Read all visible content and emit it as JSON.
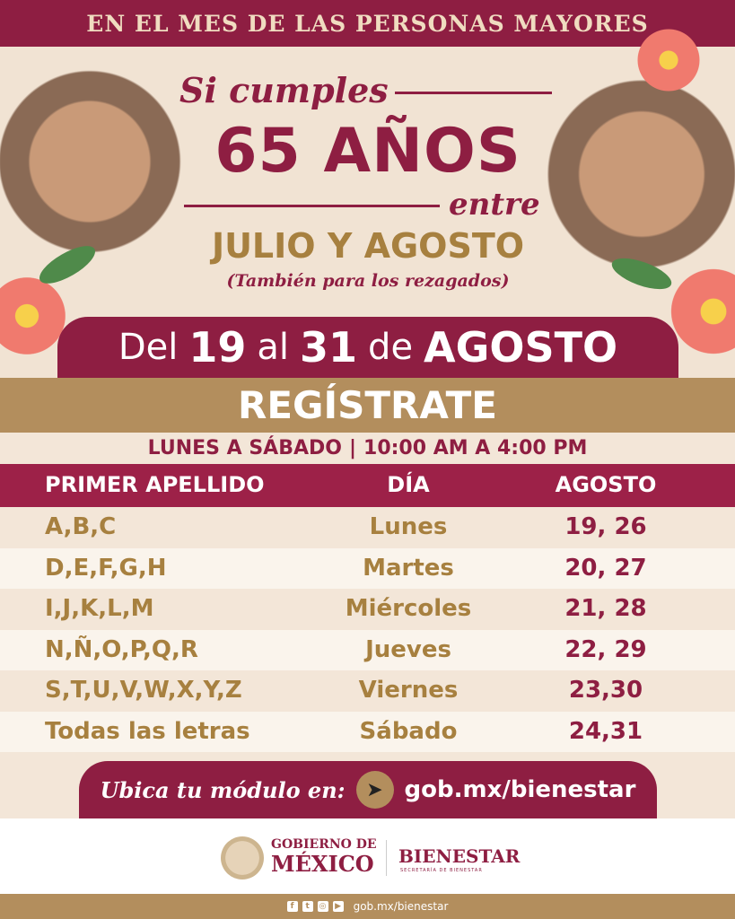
{
  "header": {
    "title": "EN EL MES DE LAS PERSONAS MAYORES"
  },
  "hero": {
    "line1": "Si cumples",
    "line2": "65 AÑOS",
    "line3": "entre",
    "line4": "JULIO Y AGOSTO",
    "line5": "(También para los rezagados)"
  },
  "dates": {
    "pre": "Del",
    "d1": "19",
    "mid": "al",
    "d2": "31",
    "de": "de",
    "month": "AGOSTO"
  },
  "register": {
    "title": "REGÍSTRATE",
    "days": "LUNES A SÁBADO",
    "sep": "|",
    "hours": "10:00 AM A 4:00 PM"
  },
  "table": {
    "headers": [
      "PRIMER APELLIDO",
      "DÍA",
      "AGOSTO"
    ],
    "rows": [
      {
        "letters": "A,B,C",
        "day": "Lunes",
        "dates": "19, 26"
      },
      {
        "letters": "D,E,F,G,H",
        "day": "Martes",
        "dates": "20, 27"
      },
      {
        "letters": "I,J,K,L,M",
        "day": "Miércoles",
        "dates": "21, 28"
      },
      {
        "letters": "N,Ñ,O,P,Q,R",
        "day": "Jueves",
        "dates": "22, 29"
      },
      {
        "letters": "S,T,U,V,W,X,Y,Z",
        "day": "Viernes",
        "dates": "23,30"
      },
      {
        "letters": "Todas las letras",
        "day": "Sábado",
        "dates": "24,31"
      }
    ]
  },
  "locate": {
    "label": "Ubica tu módulo en:",
    "url": "gob.mx/bienestar",
    "icon": "cursor-icon"
  },
  "footer": {
    "gob_line1": "GOBIERNO DE",
    "gob_line2": "MÉXICO",
    "bienestar": "BIENESTAR",
    "secretaria": "SECRETARÍA DE BIENESTAR",
    "url": "gob.mx/bienestar",
    "social": [
      "facebook-icon",
      "twitter-icon",
      "instagram-icon",
      "youtube-icon"
    ]
  },
  "colors": {
    "maroon": "#8e1e42",
    "gold": "#b38e5d",
    "cream": "#f3e6d8"
  }
}
